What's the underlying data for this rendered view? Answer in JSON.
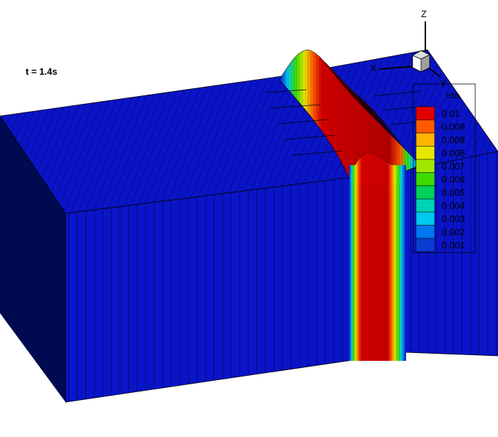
{
  "annotation": {
    "time": "t = 1.4s"
  },
  "axes": {
    "z": "Z",
    "x": "X",
    "y": "Y"
  },
  "legend": {
    "title": "eta",
    "levels": [
      {
        "label": "0.01",
        "color": "#e00000"
      },
      {
        "label": "0.009",
        "color": "#ff5a00"
      },
      {
        "label": "0.008",
        "color": "#ffb400"
      },
      {
        "label": "0.008",
        "color": "#e6e600"
      },
      {
        "label": "0.007",
        "color": "#a0e600"
      },
      {
        "label": "0.006",
        "color": "#3cdc00"
      },
      {
        "label": "0.005",
        "color": "#00d25a"
      },
      {
        "label": "0.004",
        "color": "#00d2b4"
      },
      {
        "label": "0.003",
        "color": "#00c8f0"
      },
      {
        "label": "0.002",
        "color": "#0078f0"
      },
      {
        "label": "0.001",
        "color": "#0a3cd2"
      }
    ]
  },
  "colors": {
    "background": "#ffffff",
    "surface_blue": "#0a14c8",
    "side_dark": "#000a50",
    "wave_red": "#d20000"
  }
}
